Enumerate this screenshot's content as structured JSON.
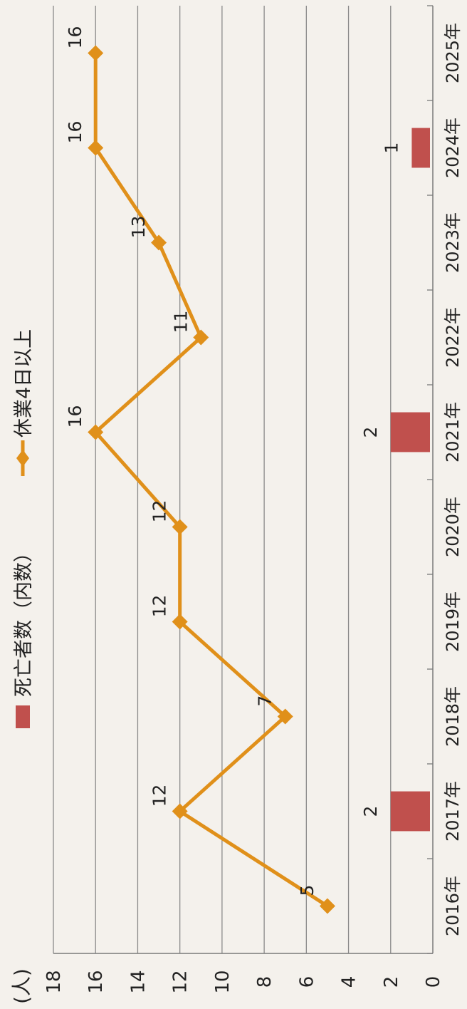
{
  "chart_data": {
    "type": "bar+line",
    "unit_label": "(人)",
    "categories": [
      "2016年",
      "2017年",
      "2018年",
      "2019年",
      "2020年",
      "2021年",
      "2022年",
      "2023年",
      "2024年",
      "2025年"
    ],
    "ylim": [
      0,
      18
    ],
    "yticks": [
      "0",
      "2",
      "4",
      "6",
      "8",
      "10",
      "12",
      "14",
      "16",
      "18"
    ],
    "grid": true,
    "legend_position": "top",
    "series": [
      {
        "name": "死亡者数（内数）",
        "kind": "bar",
        "color": "#c0504d",
        "values": [
          null,
          2,
          null,
          null,
          null,
          2,
          null,
          null,
          1,
          null
        ],
        "labels": [
          "",
          "2",
          "",
          "",
          "",
          "2",
          "",
          "",
          "1",
          ""
        ]
      },
      {
        "name": "休業4日以上",
        "kind": "line",
        "color": "#e0901a",
        "values": [
          5,
          12,
          7,
          12,
          12,
          16,
          11,
          13,
          16,
          16
        ],
        "labels": [
          "5",
          "12",
          "7",
          "12",
          "12",
          "16",
          "11",
          "13",
          "16",
          "16"
        ]
      }
    ]
  }
}
